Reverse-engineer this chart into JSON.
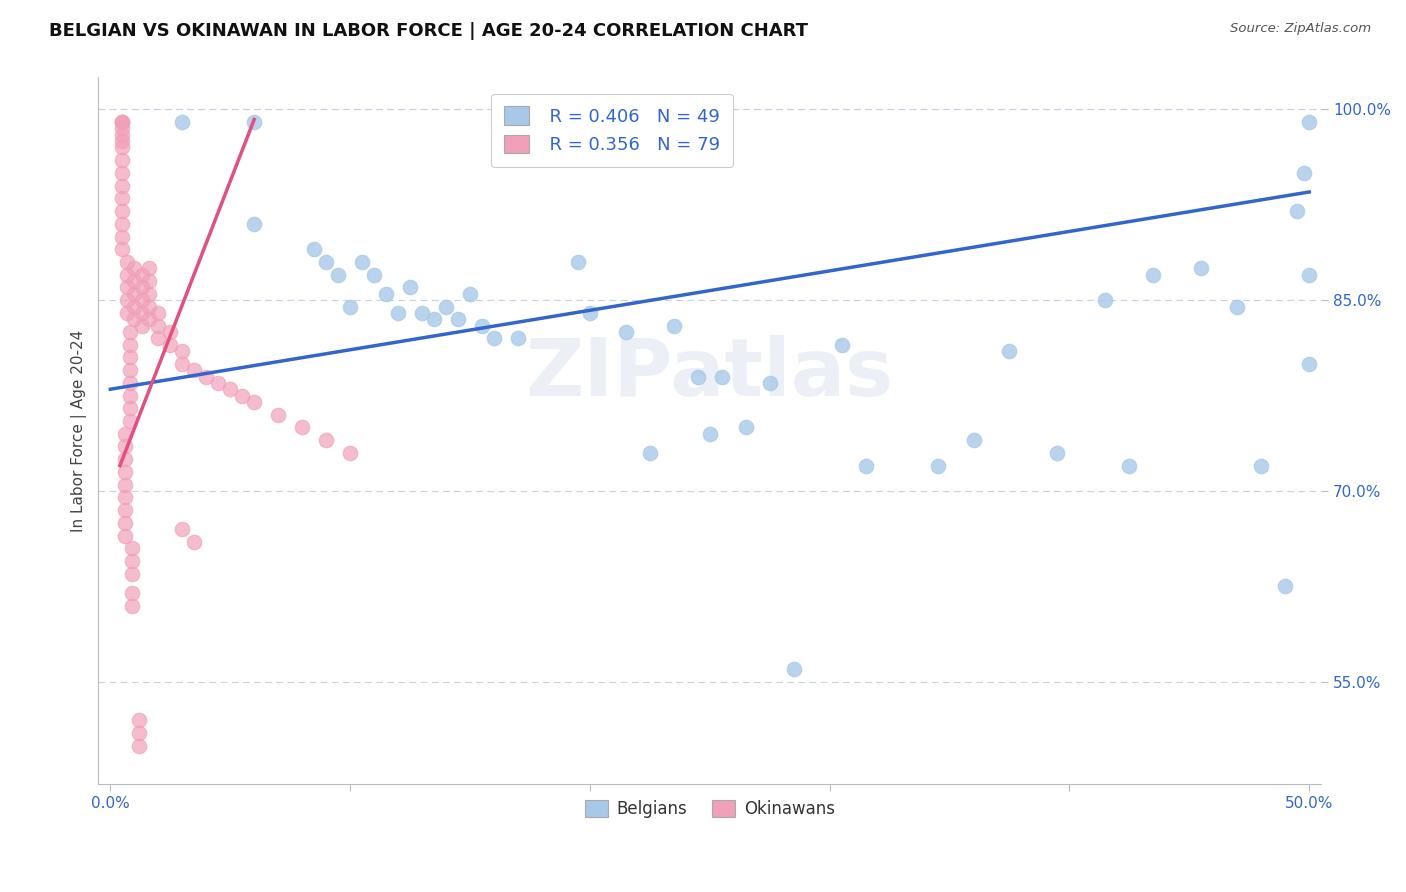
{
  "title": "BELGIAN VS OKINAWAN IN LABOR FORCE | AGE 20-24 CORRELATION CHART",
  "source": "Source: ZipAtlas.com",
  "ylabel": "In Labor Force | Age 20-24",
  "blue_R": 0.406,
  "blue_N": 49,
  "pink_R": 0.356,
  "pink_N": 79,
  "legend_labels": [
    "Belgians",
    "Okinawans"
  ],
  "blue_color": "#a8c8e8",
  "pink_color": "#f0a0b8",
  "blue_line_color": "#3366cc",
  "pink_line_color": "#e05080",
  "watermark": "ZIPatlas",
  "blue_scatter_x": [
    0.03,
    0.06,
    0.06,
    0.085,
    0.09,
    0.095,
    0.1,
    0.105,
    0.11,
    0.115,
    0.12,
    0.125,
    0.13,
    0.135,
    0.14,
    0.145,
    0.15,
    0.155,
    0.16,
    0.17,
    0.195,
    0.2,
    0.215,
    0.225,
    0.235,
    0.245,
    0.25,
    0.255,
    0.265,
    0.275,
    0.285,
    0.305,
    0.315,
    0.345,
    0.36,
    0.375,
    0.395,
    0.415,
    0.425,
    0.435,
    0.455,
    0.47,
    0.48,
    0.49,
    0.495,
    0.498,
    0.5,
    0.5,
    0.5
  ],
  "blue_scatter_y": [
    0.99,
    0.99,
    0.91,
    0.89,
    0.88,
    0.87,
    0.845,
    0.88,
    0.87,
    0.855,
    0.84,
    0.86,
    0.84,
    0.835,
    0.845,
    0.835,
    0.855,
    0.83,
    0.82,
    0.82,
    0.88,
    0.84,
    0.825,
    0.73,
    0.83,
    0.79,
    0.745,
    0.79,
    0.75,
    0.785,
    0.56,
    0.815,
    0.72,
    0.72,
    0.74,
    0.81,
    0.73,
    0.85,
    0.72,
    0.87,
    0.875,
    0.845,
    0.72,
    0.625,
    0.92,
    0.95,
    0.99,
    0.87,
    0.8
  ],
  "pink_scatter_x": [
    0.005,
    0.005,
    0.005,
    0.005,
    0.005,
    0.005,
    0.005,
    0.005,
    0.005,
    0.005,
    0.005,
    0.005,
    0.005,
    0.005,
    0.005,
    0.007,
    0.007,
    0.007,
    0.007,
    0.007,
    0.01,
    0.01,
    0.01,
    0.01,
    0.01,
    0.013,
    0.013,
    0.013,
    0.013,
    0.013,
    0.016,
    0.016,
    0.016,
    0.016,
    0.016,
    0.02,
    0.02,
    0.02,
    0.025,
    0.025,
    0.03,
    0.03,
    0.035,
    0.04,
    0.045,
    0.05,
    0.055,
    0.06,
    0.07,
    0.08,
    0.09,
    0.1,
    0.03,
    0.035,
    0.008,
    0.008,
    0.008,
    0.008,
    0.008,
    0.008,
    0.008,
    0.008,
    0.006,
    0.006,
    0.006,
    0.006,
    0.006,
    0.006,
    0.006,
    0.006,
    0.006,
    0.009,
    0.009,
    0.009,
    0.009,
    0.009,
    0.012,
    0.012,
    0.012
  ],
  "pink_scatter_y": [
    0.99,
    0.99,
    0.99,
    0.985,
    0.98,
    0.975,
    0.97,
    0.96,
    0.95,
    0.94,
    0.93,
    0.92,
    0.91,
    0.9,
    0.89,
    0.88,
    0.87,
    0.86,
    0.85,
    0.84,
    0.875,
    0.865,
    0.855,
    0.845,
    0.835,
    0.87,
    0.86,
    0.85,
    0.84,
    0.83,
    0.875,
    0.865,
    0.855,
    0.845,
    0.835,
    0.84,
    0.83,
    0.82,
    0.825,
    0.815,
    0.81,
    0.8,
    0.795,
    0.79,
    0.785,
    0.78,
    0.775,
    0.77,
    0.76,
    0.75,
    0.74,
    0.73,
    0.67,
    0.66,
    0.825,
    0.815,
    0.805,
    0.795,
    0.785,
    0.775,
    0.765,
    0.755,
    0.745,
    0.735,
    0.725,
    0.715,
    0.705,
    0.695,
    0.685,
    0.675,
    0.665,
    0.655,
    0.645,
    0.635,
    0.62,
    0.61,
    0.52,
    0.51,
    0.5
  ],
  "xlim": [
    -0.005,
    0.505
  ],
  "ylim": [
    0.47,
    1.025
  ],
  "yticks": [
    0.55,
    0.7,
    0.85,
    1.0
  ],
  "ytick_labels": [
    "55.0%",
    "70.0%",
    "85.0%",
    "100.0%"
  ],
  "xticks": [
    0.0,
    0.1,
    0.2,
    0.3,
    0.4,
    0.5
  ],
  "xtick_labels": [
    "0.0%",
    "",
    "",
    "",
    "",
    "50.0%"
  ]
}
